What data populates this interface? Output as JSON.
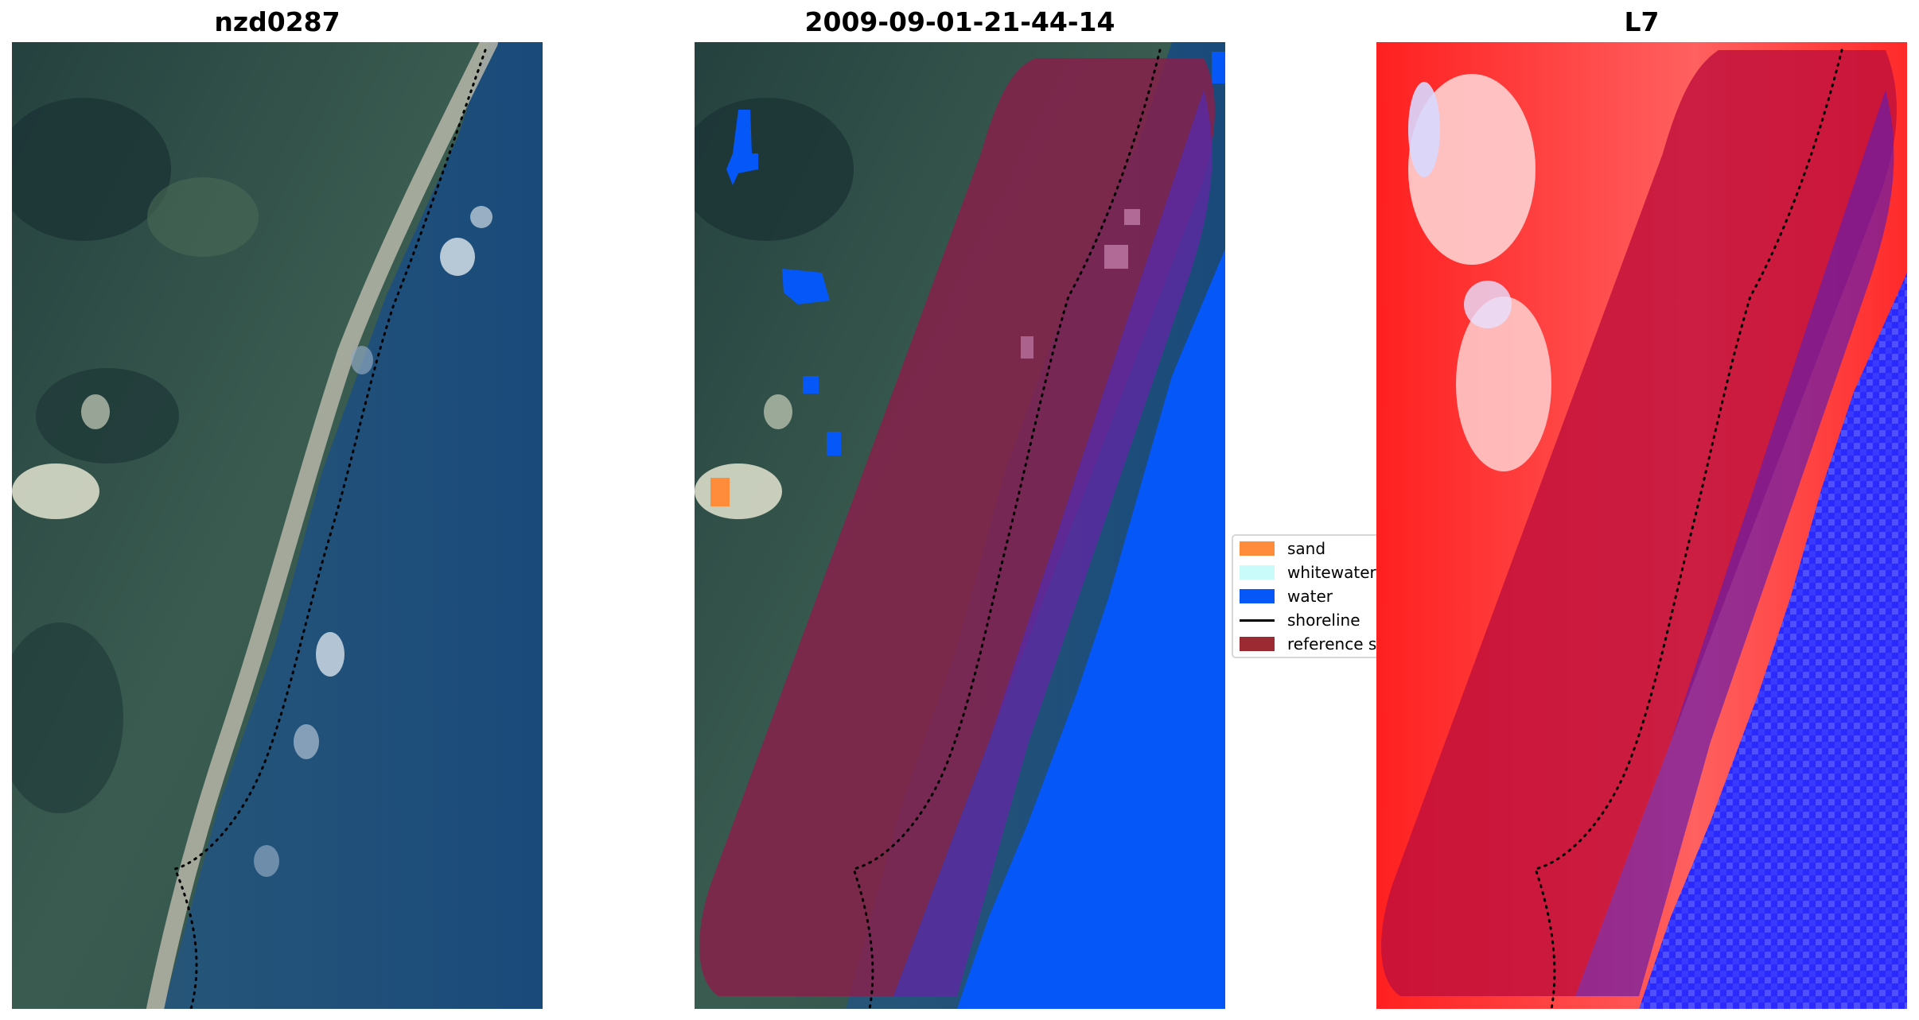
{
  "panels": [
    {
      "title": "nzd0287",
      "kind": "rgb"
    },
    {
      "title": "2009-09-01-21-44-14",
      "kind": "classified"
    },
    {
      "title": "L7",
      "kind": "index"
    }
  ],
  "legend": {
    "items": [
      {
        "label": "sand",
        "color": "#ff8c3a",
        "type": "patch"
      },
      {
        "label": "whitewater",
        "color": "#c9fbfb",
        "type": "patch"
      },
      {
        "label": "water",
        "color": "#0557f7",
        "type": "patch"
      },
      {
        "label": "shoreline",
        "color": "#000000",
        "type": "line"
      },
      {
        "label": "reference s",
        "color": "#9b2a33",
        "type": "patch"
      }
    ]
  },
  "colors": {
    "land_dark": "#1d3a3d",
    "land_green": "#3c5e52",
    "sea": "#1e4f7a",
    "beach": "#b8b8a9",
    "buffer_overlay": "#8a1f4a",
    "water_class": "#0557f7",
    "index_red": "#ff1a1a",
    "index_blue": "#2a2aff"
  }
}
